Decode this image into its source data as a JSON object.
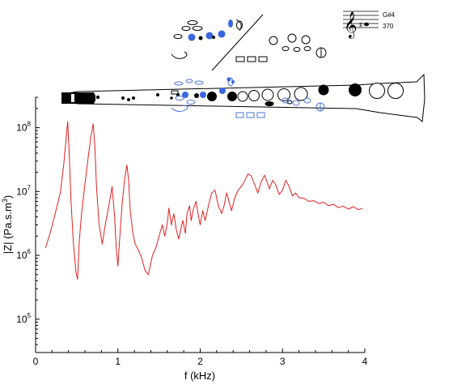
{
  "chart_data": {
    "type": "line",
    "xlabel": "f (kHz)",
    "ylabel_main": "|Z| (Pa.s.m",
    "ylabel_sup": "3",
    "ylabel_tail": ")",
    "xlim": [
      0,
      4
    ],
    "ylim": [
      30000.0,
      300000000.0
    ],
    "yscale": "log",
    "grid": false,
    "x_ticks": [
      {
        "value": 0,
        "label": "0"
      },
      {
        "value": 1,
        "label": "1"
      },
      {
        "value": 2,
        "label": "2"
      },
      {
        "value": 3,
        "label": "3"
      },
      {
        "value": 4,
        "label": "4"
      }
    ],
    "y_ticks": [
      {
        "value": 100000,
        "base": "10",
        "exp": "5"
      },
      {
        "value": 1000000,
        "base": "10",
        "exp": "6"
      },
      {
        "value": 10000000,
        "base": "10",
        "exp": "7"
      },
      {
        "value": 100000000,
        "base": "10",
        "exp": "8"
      }
    ],
    "series": [
      {
        "color": "#e02020",
        "x": [
          0.12,
          0.18,
          0.24,
          0.3,
          0.34,
          0.37,
          0.39,
          0.41,
          0.43,
          0.46,
          0.49,
          0.51,
          0.53,
          0.56,
          0.6,
          0.64,
          0.67,
          0.7,
          0.72,
          0.74,
          0.77,
          0.81,
          0.85,
          0.89,
          0.93,
          0.96,
          0.98,
          1.0,
          1.02,
          1.05,
          1.08,
          1.11,
          1.13,
          1.15,
          1.18,
          1.21,
          1.25,
          1.29,
          1.33,
          1.37,
          1.42,
          1.46,
          1.5,
          1.54,
          1.57,
          1.6,
          1.62,
          1.65,
          1.68,
          1.71,
          1.74,
          1.77,
          1.79,
          1.82,
          1.84,
          1.87,
          1.89,
          1.92,
          1.95,
          1.98,
          2.0,
          2.03,
          2.06,
          2.1,
          2.14,
          2.18,
          2.22,
          2.26,
          2.29,
          2.32,
          2.35,
          2.38,
          2.42,
          2.46,
          2.5,
          2.54,
          2.58,
          2.62,
          2.66,
          2.7,
          2.74,
          2.78,
          2.81,
          2.84,
          2.88,
          2.92,
          2.96,
          3.0,
          3.04,
          3.08,
          3.12,
          3.16,
          3.2,
          3.26,
          3.32,
          3.38,
          3.44,
          3.5,
          3.56,
          3.62,
          3.68,
          3.74,
          3.8,
          3.86,
          3.92,
          3.97
        ],
        "y": [
          1300000.0,
          2300000.0,
          4600000.0,
          9500000.0,
          25000000.0,
          65000000.0,
          125000000.0,
          35000000.0,
          7000000.0,
          1500000.0,
          550000.0,
          420000.0,
          1600000.0,
          4800000.0,
          13000000.0,
          35000000.0,
          70000000.0,
          115000000.0,
          50000000.0,
          12000000.0,
          3200000.0,
          1500000.0,
          3200000.0,
          6000000.0,
          12000000.0,
          4000000.0,
          1300000.0,
          680000.0,
          1700000.0,
          6000000.0,
          15000000.0,
          26000000.0,
          15000000.0,
          5000000.0,
          2300000.0,
          1500000.0,
          1200000.0,
          900000.0,
          580000.0,
          500000.0,
          1000000.0,
          1300000.0,
          2000000.0,
          3000000.0,
          2000000.0,
          3200000.0,
          5500000.0,
          3000000.0,
          4500000.0,
          2500000.0,
          1800000.0,
          2800000.0,
          3500000.0,
          2200000.0,
          4500000.0,
          6000000.0,
          3500000.0,
          5500000.0,
          7000000.0,
          4000000.0,
          3000000.0,
          5000000.0,
          3500000.0,
          6000000.0,
          9500000.0,
          10500000.0,
          6000000.0,
          4500000.0,
          6000000.0,
          9500000.0,
          7000000.0,
          5000000.0,
          8000000.0,
          10500000.0,
          12000000.0,
          14500000.0,
          19000000.0,
          17500000.0,
          13000000.0,
          9500000.0,
          14000000.0,
          18000000.0,
          14500000.0,
          11000000.0,
          15000000.0,
          12500000.0,
          9000000.0,
          10500000.0,
          15000000.0,
          12000000.0,
          8500000.0,
          9500000.0,
          8000000.0,
          7800000.0,
          7000000.0,
          7200000.0,
          6500000.0,
          6800000.0,
          6000000.0,
          6300000.0,
          5600000.0,
          5900000.0,
          5300000.0,
          5800000.0,
          5200000.0,
          5400000.0
        ]
      }
    ]
  },
  "note_annotation": {
    "note_name": "G#4",
    "frequency": "370"
  }
}
